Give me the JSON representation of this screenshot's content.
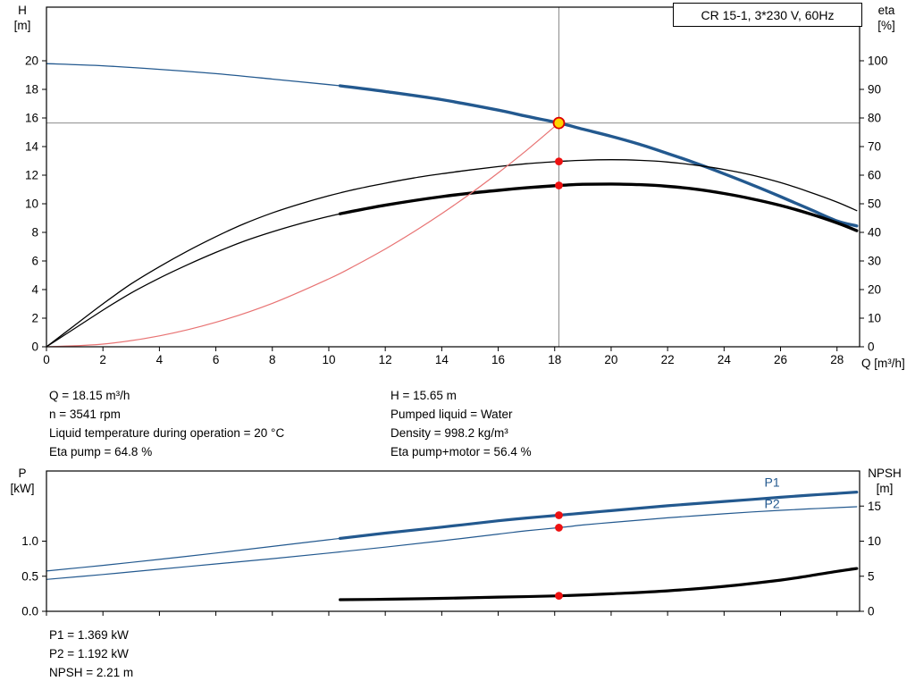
{
  "chart_data": [
    {
      "type": "line",
      "title": "CR 15-1, 3*230 V, 60Hz",
      "x_axis": {
        "label": "Q [m³/h]",
        "min": 0,
        "max": 28.8,
        "ticks": [
          {
            "v": 0,
            "t": "0"
          },
          {
            "v": 2,
            "t": "2"
          },
          {
            "v": 4,
            "t": "4"
          },
          {
            "v": 6,
            "t": "6"
          },
          {
            "v": 8,
            "t": "8"
          },
          {
            "v": 10,
            "t": "10"
          },
          {
            "v": 12,
            "t": "12"
          },
          {
            "v": 14,
            "t": "14"
          },
          {
            "v": 16,
            "t": "16"
          },
          {
            "v": 18,
            "t": "18"
          },
          {
            "v": 20,
            "t": "20"
          },
          {
            "v": 22,
            "t": "22"
          },
          {
            "v": 24,
            "t": "24"
          },
          {
            "v": 26,
            "t": "26"
          },
          {
            "v": 28,
            "t": "28"
          }
        ]
      },
      "y_axis": {
        "name": "H",
        "unit": "[m]",
        "min": 0,
        "max": 23.75,
        "ticks": [
          {
            "v": 0,
            "t": "0"
          },
          {
            "v": 2,
            "t": "2"
          },
          {
            "v": 4,
            "t": "4"
          },
          {
            "v": 6,
            "t": "6"
          },
          {
            "v": 8,
            "t": "8"
          },
          {
            "v": 10,
            "t": "10"
          },
          {
            "v": 12,
            "t": "12"
          },
          {
            "v": 14,
            "t": "14"
          },
          {
            "v": 16,
            "t": "16"
          },
          {
            "v": 18,
            "t": "18"
          },
          {
            "v": 20,
            "t": "20"
          }
        ]
      },
      "y2_axis": {
        "name": "eta",
        "unit": "[%]",
        "min": 0,
        "max": 118.75,
        "ticks": [
          {
            "v": 0,
            "t": "0"
          },
          {
            "v": 10,
            "t": "10"
          },
          {
            "v": 20,
            "t": "20"
          },
          {
            "v": 30,
            "t": "30"
          },
          {
            "v": 40,
            "t": "40"
          },
          {
            "v": 50,
            "t": "50"
          },
          {
            "v": 60,
            "t": "60"
          },
          {
            "v": 70,
            "t": "70"
          },
          {
            "v": 80,
            "t": "80"
          },
          {
            "v": 90,
            "t": "90"
          },
          {
            "v": 100,
            "t": "100"
          }
        ]
      },
      "crosshair": {
        "x": 18.15,
        "y": 15.65,
        "color": "#8c8c8c"
      },
      "series": [
        {
          "name": "pump-curve-lead-in",
          "axis": "y",
          "color": "#23598f",
          "width": 1.3,
          "points": [
            [
              0,
              19.8
            ],
            [
              2,
              19.65
            ],
            [
              4,
              19.4
            ],
            [
              6,
              19.1
            ],
            [
              8,
              18.72
            ],
            [
              10,
              18.33
            ],
            [
              10.4,
              18.25
            ]
          ]
        },
        {
          "name": "pump-curve",
          "axis": "y",
          "color": "#23598f",
          "width": 3.4,
          "points": [
            [
              10.4,
              18.25
            ],
            [
              12,
              17.85
            ],
            [
              14,
              17.28
            ],
            [
              16,
              16.55
            ],
            [
              17,
              16.12
            ],
            [
              18.15,
              15.65
            ],
            [
              19,
              15.22
            ],
            [
              20,
              14.72
            ],
            [
              21,
              14.16
            ],
            [
              22,
              13.52
            ],
            [
              23,
              12.84
            ],
            [
              24,
              12.1
            ],
            [
              25,
              11.32
            ],
            [
              26,
              10.5
            ],
            [
              27,
              9.65
            ],
            [
              28,
              8.8
            ],
            [
              28.7,
              8.45
            ]
          ]
        },
        {
          "name": "eta-pump",
          "axis": "y2",
          "color": "#000000",
          "width": 1.3,
          "points": [
            [
              0,
              0
            ],
            [
              1,
              7.5
            ],
            [
              2,
              15
            ],
            [
              3,
              22
            ],
            [
              4,
              28
            ],
            [
              5,
              33.5
            ],
            [
              6,
              38.5
            ],
            [
              7,
              43
            ],
            [
              8,
              46.8
            ],
            [
              9,
              50
            ],
            [
              10,
              52.8
            ],
            [
              11,
              55.2
            ],
            [
              12,
              57.2
            ],
            [
              13,
              59
            ],
            [
              14,
              60.5
            ],
            [
              15,
              61.8
            ],
            [
              16,
              63
            ],
            [
              17,
              64
            ],
            [
              18.15,
              64.8
            ],
            [
              19,
              65.2
            ],
            [
              20,
              65.4
            ],
            [
              21,
              65.2
            ],
            [
              22,
              64.6
            ],
            [
              23,
              63.5
            ],
            [
              24,
              62
            ],
            [
              25,
              60
            ],
            [
              26,
              57.4
            ],
            [
              27,
              54.2
            ],
            [
              28,
              50.6
            ],
            [
              28.7,
              47.6
            ]
          ]
        },
        {
          "name": "eta-pump-motor-lead-in",
          "axis": "y2",
          "color": "#000000",
          "width": 1.3,
          "points": [
            [
              0,
              0
            ],
            [
              1,
              6.4
            ],
            [
              2,
              12.8
            ],
            [
              3,
              18.8
            ],
            [
              4,
              24
            ],
            [
              5,
              28.7
            ],
            [
              6,
              33
            ],
            [
              7,
              36.9
            ],
            [
              8,
              40.2
            ],
            [
              9,
              43.1
            ],
            [
              10,
              45.6
            ],
            [
              10.4,
              46.5
            ]
          ]
        },
        {
          "name": "eta-pump-motor",
          "axis": "y2",
          "color": "#000000",
          "width": 3.4,
          "points": [
            [
              10.4,
              46.5
            ],
            [
              11,
              47.7
            ],
            [
              12,
              49.5
            ],
            [
              13,
              51.1
            ],
            [
              14,
              52.5
            ],
            [
              15,
              53.7
            ],
            [
              16,
              54.7
            ],
            [
              17,
              55.6
            ],
            [
              18.15,
              56.4
            ],
            [
              19,
              56.8
            ],
            [
              20,
              56.9
            ],
            [
              21,
              56.7
            ],
            [
              22,
              56.1
            ],
            [
              23,
              55.1
            ],
            [
              24,
              53.6
            ],
            [
              25,
              51.7
            ],
            [
              26,
              49.4
            ],
            [
              27,
              46.6
            ],
            [
              28,
              43.3
            ],
            [
              28.7,
              40.6
            ]
          ]
        },
        {
          "name": "system-curve",
          "axis": "y",
          "color": "#e87373",
          "width": 1.2,
          "points": [
            [
              0,
              0
            ],
            [
              2,
              0.19
            ],
            [
              4,
              0.76
            ],
            [
              6,
              1.71
            ],
            [
              8,
              3.04
            ],
            [
              10,
              4.75
            ],
            [
              11,
              5.75
            ],
            [
              12,
              6.84
            ],
            [
              13,
              8.03
            ],
            [
              14,
              9.31
            ],
            [
              15,
              10.69
            ],
            [
              16,
              12.16
            ],
            [
              17,
              13.73
            ],
            [
              18.15,
              15.65
            ]
          ]
        }
      ],
      "markers": [
        {
          "q": 18.15,
          "v": 15.65,
          "axis": "y",
          "style": "duty",
          "fill": "#ffd400",
          "stroke": "#dd0000"
        },
        {
          "q": 18.15,
          "v": 64.8,
          "axis": "y2",
          "style": "dot",
          "fill": "#ee1111"
        },
        {
          "q": 18.15,
          "v": 56.4,
          "axis": "y2",
          "style": "dot",
          "fill": "#ee1111"
        }
      ]
    },
    {
      "type": "line",
      "x_axis": {
        "label": "",
        "min": 0,
        "max": 28.8,
        "ticks": [
          {
            "v": 0
          },
          {
            "v": 2
          },
          {
            "v": 4
          },
          {
            "v": 6
          },
          {
            "v": 8
          },
          {
            "v": 10
          },
          {
            "v": 12
          },
          {
            "v": 14
          },
          {
            "v": 16
          },
          {
            "v": 18
          },
          {
            "v": 20
          },
          {
            "v": 22
          },
          {
            "v": 24
          },
          {
            "v": 26
          },
          {
            "v": 28
          }
        ]
      },
      "y_axis": {
        "name": "P",
        "unit": "[kW]",
        "min": 0,
        "max": 2.0,
        "ticks": [
          {
            "v": 0,
            "t": "0.0"
          },
          {
            "v": 0.5,
            "t": "0.5"
          },
          {
            "v": 1,
            "t": "1.0"
          }
        ]
      },
      "y2_axis": {
        "name": "NPSH",
        "unit": "[m]",
        "min": 0,
        "max": 20,
        "ticks": [
          {
            "v": 0,
            "t": "0"
          },
          {
            "v": 5,
            "t": "5"
          },
          {
            "v": 10,
            "t": "10"
          },
          {
            "v": 15,
            "t": "15"
          }
        ]
      },
      "series": [
        {
          "name": "p1-lead-in",
          "axis": "y",
          "color": "#23598f",
          "width": 1.2,
          "points": [
            [
              0,
              0.575
            ],
            [
              2,
              0.655
            ],
            [
              4,
              0.74
            ],
            [
              6,
              0.83
            ],
            [
              8,
              0.925
            ],
            [
              10,
              1.02
            ],
            [
              10.4,
              1.04
            ]
          ]
        },
        {
          "name": "p1",
          "axis": "y",
          "color": "#23598f",
          "width": 3.2,
          "points": [
            [
              10.4,
              1.04
            ],
            [
              12,
              1.115
            ],
            [
              14,
              1.2
            ],
            [
              16,
              1.29
            ],
            [
              17,
              1.33
            ],
            [
              18.15,
              1.369
            ],
            [
              19,
              1.4
            ],
            [
              20,
              1.435
            ],
            [
              21,
              1.47
            ],
            [
              22,
              1.505
            ],
            [
              23,
              1.535
            ],
            [
              24,
              1.565
            ],
            [
              25,
              1.595
            ],
            [
              26,
              1.625
            ],
            [
              27,
              1.655
            ],
            [
              28,
              1.68
            ],
            [
              28.7,
              1.7
            ]
          ]
        },
        {
          "name": "p2",
          "axis": "y",
          "color": "#23598f",
          "width": 1.2,
          "points": [
            [
              0,
              0.455
            ],
            [
              2,
              0.525
            ],
            [
              4,
              0.6
            ],
            [
              6,
              0.675
            ],
            [
              8,
              0.75
            ],
            [
              10,
              0.83
            ],
            [
              12,
              0.915
            ],
            [
              14,
              1.005
            ],
            [
              16,
              1.1
            ],
            [
              17,
              1.148
            ],
            [
              18.15,
              1.192
            ],
            [
              19,
              1.23
            ],
            [
              20,
              1.266
            ],
            [
              21,
              1.3
            ],
            [
              22,
              1.332
            ],
            [
              23,
              1.362
            ],
            [
              24,
              1.39
            ],
            [
              25,
              1.416
            ],
            [
              26,
              1.44
            ],
            [
              27,
              1.46
            ],
            [
              28,
              1.478
            ],
            [
              28.7,
              1.49
            ]
          ]
        },
        {
          "name": "npsh",
          "axis": "y2",
          "color": "#000000",
          "width": 3.2,
          "points": [
            [
              10.4,
              1.65
            ],
            [
              12,
              1.72
            ],
            [
              14,
              1.85
            ],
            [
              16,
              2.02
            ],
            [
              18.15,
              2.21
            ],
            [
              20,
              2.5
            ],
            [
              22,
              2.92
            ],
            [
              24,
              3.55
            ],
            [
              26,
              4.45
            ],
            [
              27,
              5.05
            ],
            [
              28,
              5.7
            ],
            [
              28.7,
              6.1
            ]
          ]
        }
      ],
      "markers": [
        {
          "q": 18.15,
          "v": 1.369,
          "axis": "y",
          "style": "dot",
          "fill": "#ee1111"
        },
        {
          "q": 18.15,
          "v": 1.192,
          "axis": "y",
          "style": "dot",
          "fill": "#ee1111"
        },
        {
          "q": 18.15,
          "v": 2.21,
          "axis": "y2",
          "style": "dot",
          "fill": "#ee1111"
        }
      ],
      "annotations": [
        {
          "t": "P1",
          "q": 25.7,
          "v": 1.78,
          "axis": "y",
          "color": "#23598f"
        },
        {
          "t": "P2",
          "q": 25.7,
          "v": 1.47,
          "axis": "y",
          "color": "#23598f"
        }
      ]
    }
  ],
  "details": {
    "left": [
      "Q = 18.15 m³/h",
      "n = 3541 rpm",
      "Liquid temperature during operation = 20 °C",
      "Eta pump = 64.8 %"
    ],
    "right": [
      "H = 15.65 m",
      "Pumped liquid = Water",
      "Density = 998.2 kg/m³",
      "Eta pump+motor = 56.4 %"
    ]
  },
  "power_details": [
    "P1 = 1.369 kW",
    "P2 = 1.192 kW",
    "NPSH = 2.21 m"
  ]
}
